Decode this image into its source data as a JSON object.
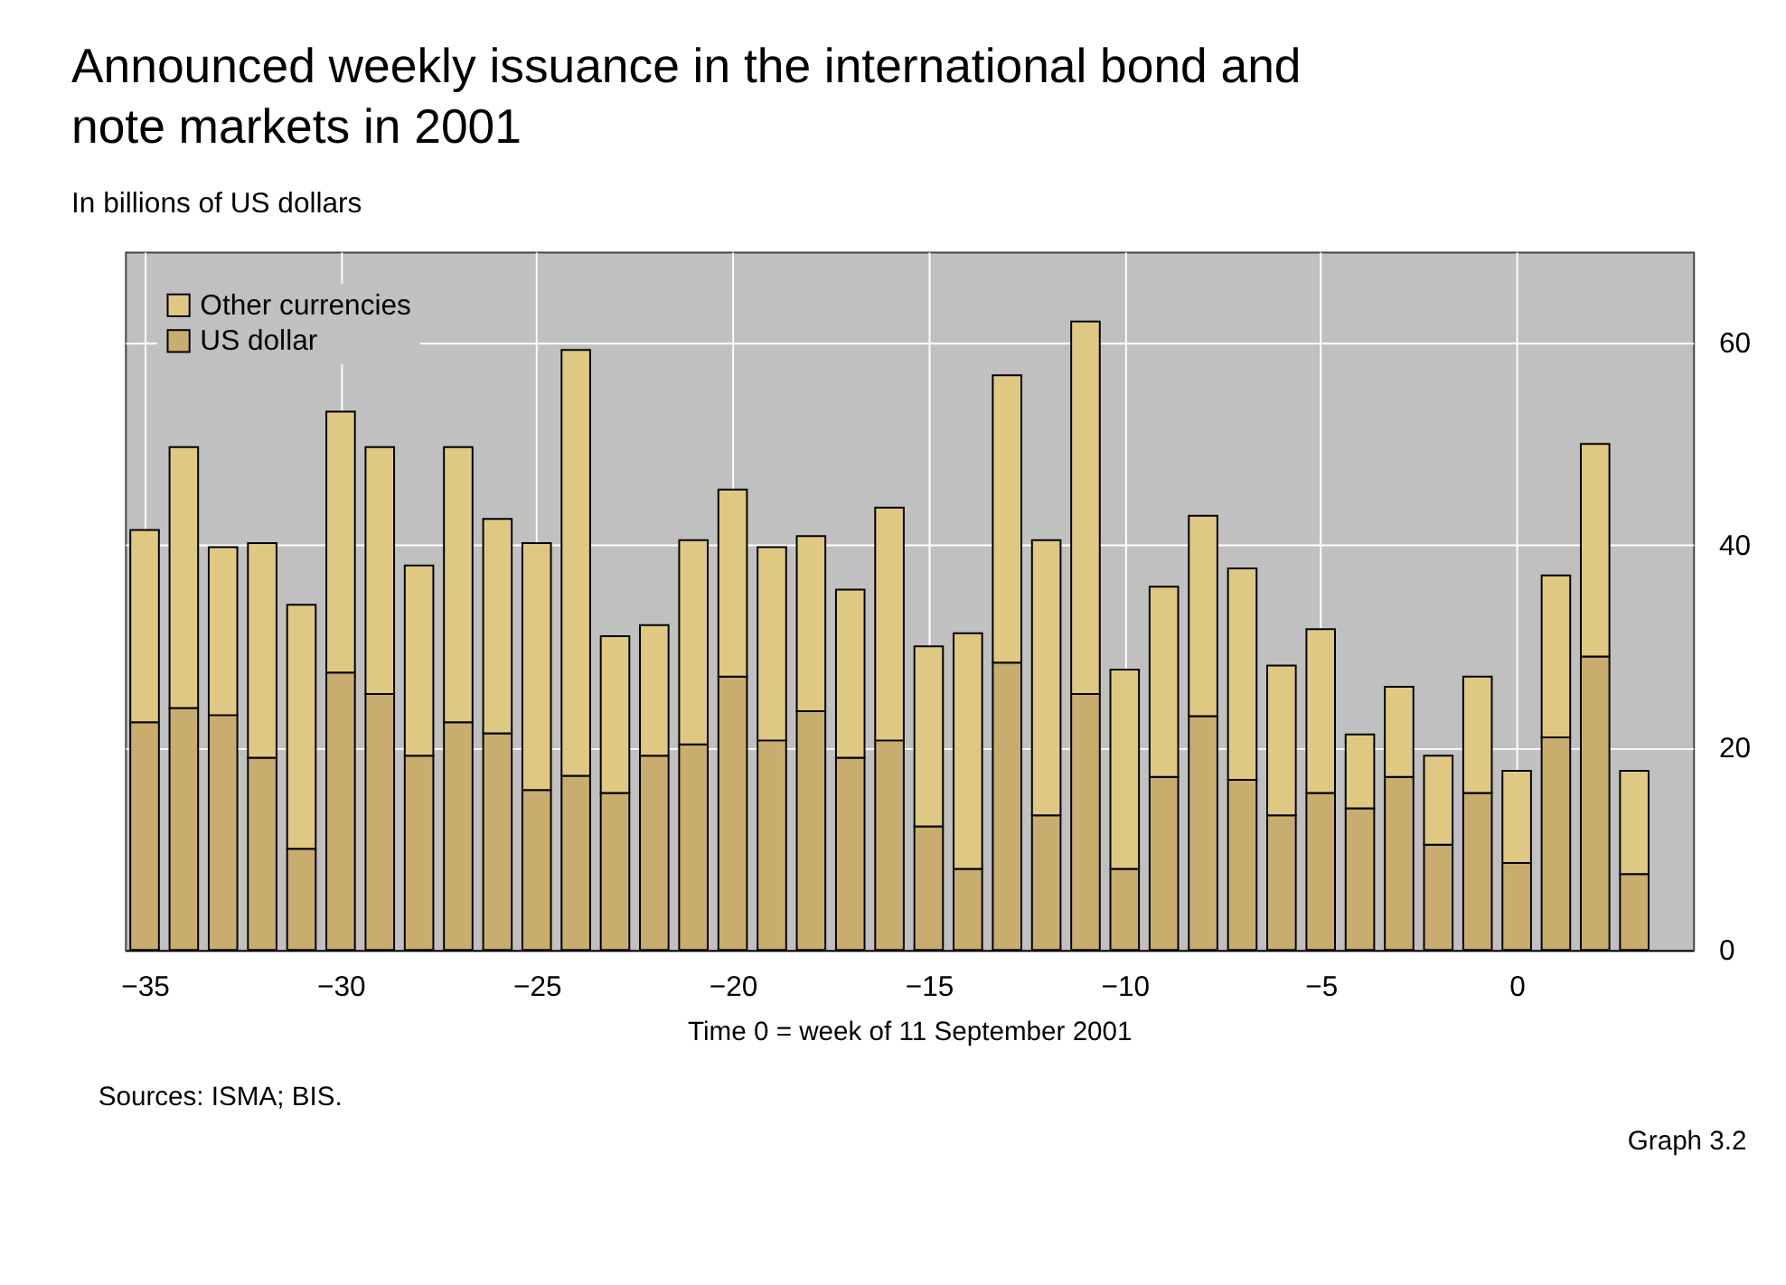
{
  "chart_data": {
    "type": "bar",
    "title": "Announced weekly issuance in the international bond and note markets in 2001",
    "subtitle": "In billions of US dollars",
    "xlabel": "Time 0 = week of 11 September 2001",
    "x": [
      -35,
      -34,
      -33,
      -32,
      -31,
      -30,
      -29,
      -28,
      -27,
      -26,
      -25,
      -24,
      -23,
      -22,
      -21,
      -20,
      -19,
      -18,
      -17,
      -16,
      -15,
      -14,
      -13,
      -12,
      -11,
      -10,
      -9,
      -8,
      -7,
      -6,
      -5,
      -4,
      -3,
      -2,
      -1,
      0,
      1,
      2,
      3
    ],
    "stacked": true,
    "series": [
      {
        "name": "US dollar",
        "color": "#c9ad6e",
        "values": [
          22.5,
          23.9,
          23.2,
          19,
          10,
          27.4,
          25.3,
          19.2,
          22.5,
          21.4,
          15.8,
          17.2,
          15.5,
          19.2,
          20.3,
          27,
          20.7,
          23.6,
          19,
          20.7,
          12.2,
          8,
          28.4,
          13.3,
          25.3,
          8,
          17.1,
          23.1,
          16.8,
          13.3,
          15.5,
          14,
          17.1,
          10.4,
          15.5,
          8.6,
          21,
          29,
          7.5
        ]
      },
      {
        "name": "Other currencies",
        "color": "#dfc882",
        "values": [
          19,
          25.8,
          16.6,
          21.2,
          24.1,
          25.8,
          24.4,
          18.8,
          27.2,
          21.2,
          24.4,
          42.1,
          15.5,
          12.9,
          20.2,
          18.5,
          19.1,
          17.3,
          16.6,
          23,
          17.8,
          23.3,
          28.4,
          27.2,
          36.8,
          19.7,
          18.8,
          19.8,
          20.9,
          14.8,
          16.2,
          7.3,
          8.9,
          8.8,
          11.5,
          9.1,
          16,
          21,
          10.2
        ]
      }
    ],
    "xlim": [
      -35.5,
      4.5
    ],
    "xticks": [
      -35,
      -30,
      -25,
      -20,
      -15,
      -10,
      -5,
      0
    ],
    "ylim": [
      0,
      69
    ],
    "yticks": [
      0,
      20,
      40,
      60
    ],
    "grid": true,
    "legend": "top left",
    "annotations": [
      "Sources: ISMA; BIS.",
      "Graph 3.2"
    ]
  }
}
